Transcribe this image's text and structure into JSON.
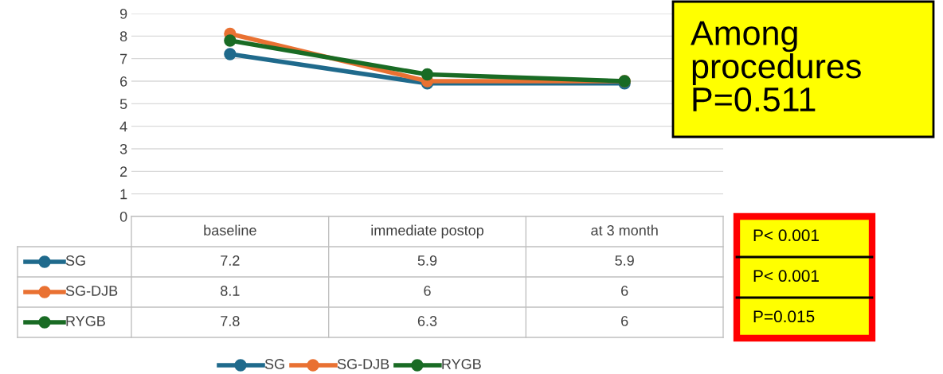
{
  "chart_data": {
    "type": "line",
    "categories": [
      "baseline",
      "immediate postop",
      "at 3 month"
    ],
    "series": [
      {
        "name": "SG",
        "color": "#1f6a8c",
        "values": [
          7.2,
          5.9,
          5.9
        ]
      },
      {
        "name": "SG-DJB",
        "color": "#e97132",
        "values": [
          8.1,
          6,
          6
        ]
      },
      {
        "name": "RYGB",
        "color": "#196b24",
        "values": [
          7.8,
          6.3,
          6
        ]
      }
    ],
    "ylim": [
      0,
      9
    ],
    "yticks": [
      0,
      1,
      2,
      3,
      4,
      5,
      6,
      7,
      8,
      9
    ],
    "grid": "y",
    "marker": "circle",
    "line_style": "solid",
    "legend": "bottom",
    "data_labels": true,
    "annotations": [
      "Among\nprocedures\nP=0.511",
      "P< 0.001",
      "P< 0.001",
      "P=0.015"
    ]
  }
}
